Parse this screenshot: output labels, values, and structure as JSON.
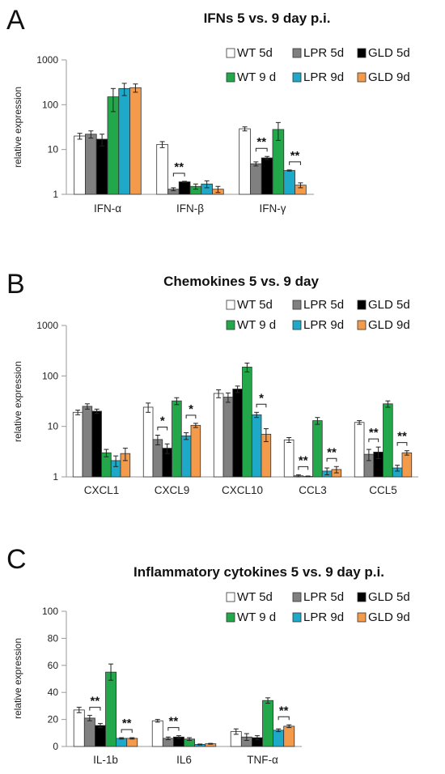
{
  "colors": {
    "WT 5d": "#ffffff",
    "LPR 5d": "#808080",
    "GLD 5d": "#000000",
    "WT 9 d": "#22a84a",
    "LPR 9d": "#1fa9c9",
    "GLD 9d": "#f39a4b"
  },
  "chart_data": [
    {
      "panel": "A",
      "type": "bar",
      "title": "IFNs 5 vs. 9 day p.i.",
      "xlabel": "",
      "ylabel": "relative expression",
      "scale": "log",
      "ylim": [
        1,
        1000
      ],
      "yticks": [
        "1",
        "10",
        "100",
        "1000"
      ],
      "categories": [
        "IFN-α",
        "IFN-β",
        "IFN-γ"
      ],
      "legend": "top",
      "series": [
        {
          "name": "WT 5d",
          "values": [
            20,
            13,
            29
          ],
          "err": [
            3,
            2,
            3
          ]
        },
        {
          "name": "LPR 5d",
          "values": [
            22,
            1.3,
            4.8
          ],
          "err": [
            4,
            0.1,
            0.5
          ]
        },
        {
          "name": "GLD 5d",
          "values": [
            17,
            1.9,
            6.5
          ],
          "err": [
            5,
            0.05,
            0.5
          ]
        },
        {
          "name": "WT 9 d",
          "values": [
            150,
            1.5,
            28
          ],
          "err": [
            80,
            0.2,
            12
          ]
        },
        {
          "name": "LPR 9d",
          "values": [
            230,
            1.7,
            3.4
          ],
          "err": [
            70,
            0.3,
            0.1
          ]
        },
        {
          "name": "GLD 9d",
          "values": [
            240,
            1.3,
            1.6
          ],
          "err": [
            50,
            0.2,
            0.2
          ]
        }
      ],
      "significance": [
        {
          "category": "IFN-β",
          "label": "**"
        },
        {
          "category": "IFN-γ",
          "label": "**",
          "pair": "5d"
        },
        {
          "category": "IFN-γ",
          "label": "**",
          "pair": "9d"
        }
      ]
    },
    {
      "panel": "B",
      "type": "bar",
      "title": "Chemokines 5 vs. 9 day",
      "xlabel": "",
      "ylabel": "relative expression",
      "scale": "log",
      "ylim": [
        1,
        1000
      ],
      "yticks": [
        "1",
        "10",
        "100",
        "1000"
      ],
      "categories": [
        "CXCL1",
        "CXCL9",
        "CXCL10",
        "CCL3",
        "CCL5"
      ],
      "legend": "top",
      "series": [
        {
          "name": "WT 5d",
          "values": [
            19,
            24,
            45,
            5.4,
            12
          ],
          "err": [
            2,
            5,
            8,
            0.6,
            1
          ]
        },
        {
          "name": "LPR 5d",
          "values": [
            25,
            5.5,
            38,
            1.05,
            2.8
          ],
          "err": [
            3,
            1.2,
            8,
            0.05,
            0.7
          ]
        },
        {
          "name": "GLD 5d",
          "values": [
            20,
            3.7,
            55,
            1.02,
            3.1
          ],
          "err": [
            2,
            0.8,
            8,
            0.02,
            0.8
          ]
        },
        {
          "name": "WT 9 d",
          "values": [
            3.0,
            32,
            150,
            13,
            28
          ],
          "err": [
            0.5,
            5,
            30,
            2,
            4
          ]
        },
        {
          "name": "LPR 9d",
          "values": [
            2.1,
            6.5,
            17,
            1.3,
            1.5
          ],
          "err": [
            0.5,
            1,
            2,
            0.2,
            0.2
          ]
        },
        {
          "name": "GLD 9d",
          "values": [
            2.9,
            10.5,
            7,
            1.4,
            3.0
          ],
          "err": [
            0.8,
            1,
            2,
            0.2,
            0.3
          ]
        }
      ],
      "significance": [
        {
          "category": "CXCL9",
          "label": "*",
          "pair": "5d"
        },
        {
          "category": "CXCL9",
          "label": "*",
          "pair": "9d"
        },
        {
          "category": "CXCL10",
          "label": "*",
          "pair": "9d"
        },
        {
          "category": "CCL3",
          "label": "**",
          "pair": "5d"
        },
        {
          "category": "CCL3",
          "label": "**",
          "pair": "9d"
        },
        {
          "category": "CCL5",
          "label": "**",
          "pair": "5d"
        },
        {
          "category": "CCL5",
          "label": "**",
          "pair": "9d"
        }
      ]
    },
    {
      "panel": "C",
      "type": "bar",
      "title": "Inflammatory cytokines 5 vs. 9 day p.i.",
      "xlabel": "",
      "ylabel": "relative expression",
      "scale": "linear",
      "ylim": [
        0,
        100
      ],
      "yticks": [
        "0",
        "20",
        "40",
        "60",
        "80",
        "100"
      ],
      "categories": [
        "IL-1b",
        "IL6",
        "TNF-α"
      ],
      "legend": "top",
      "series": [
        {
          "name": "WT 5d",
          "values": [
            27,
            19,
            11
          ],
          "err": [
            2,
            1,
            2
          ]
        },
        {
          "name": "LPR 5d",
          "values": [
            21,
            6,
            7
          ],
          "err": [
            2,
            1,
            2.5
          ]
        },
        {
          "name": "GLD 5d",
          "values": [
            15.5,
            7,
            6.5
          ],
          "err": [
            1.5,
            1,
            1.5
          ]
        },
        {
          "name": "WT 9 d",
          "values": [
            55,
            5.5,
            34
          ],
          "err": [
            6,
            1,
            2
          ]
        },
        {
          "name": "LPR 9d",
          "values": [
            6,
            1.5,
            12
          ],
          "err": [
            0.5,
            0.3,
            1
          ]
        },
        {
          "name": "GLD 9d",
          "values": [
            6,
            2,
            15
          ],
          "err": [
            0.5,
            0.3,
            1
          ]
        }
      ],
      "significance": [
        {
          "category": "IL-1b",
          "label": "**",
          "pair": "5d"
        },
        {
          "category": "IL-1b",
          "label": "**",
          "pair": "9d"
        },
        {
          "category": "IL6",
          "label": "**",
          "pair": "5d"
        },
        {
          "category": "TNF-α",
          "label": "**",
          "pair": "9d"
        }
      ]
    }
  ]
}
